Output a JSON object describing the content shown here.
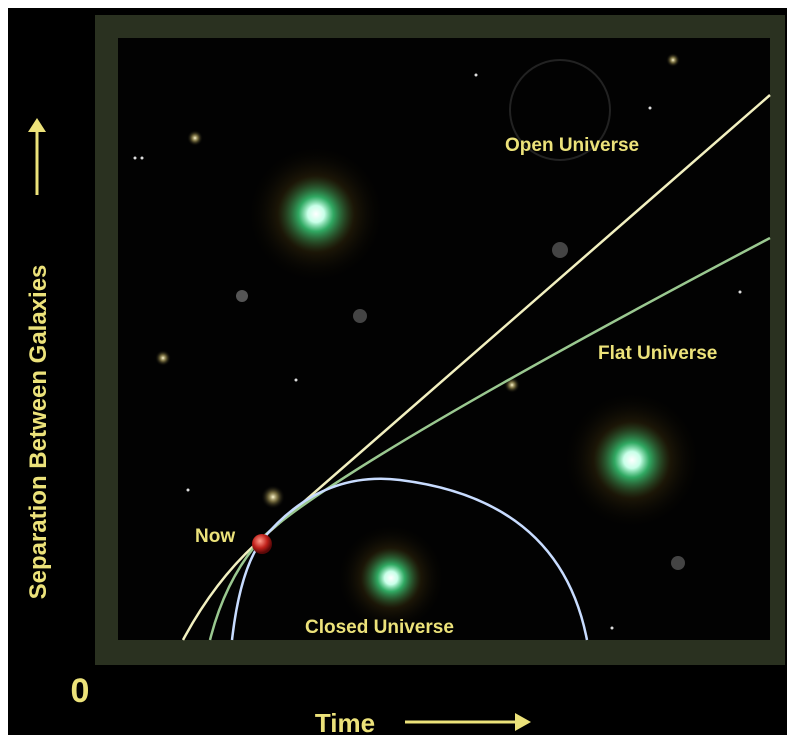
{
  "diagram": {
    "curves": {
      "open": "Open Universe",
      "flat": "Flat Universe",
      "closed": "Closed Universe"
    },
    "marker": "Now",
    "axes": {
      "x": "Time",
      "y": "Separation Between Galaxies",
      "origin": "0"
    }
  }
}
